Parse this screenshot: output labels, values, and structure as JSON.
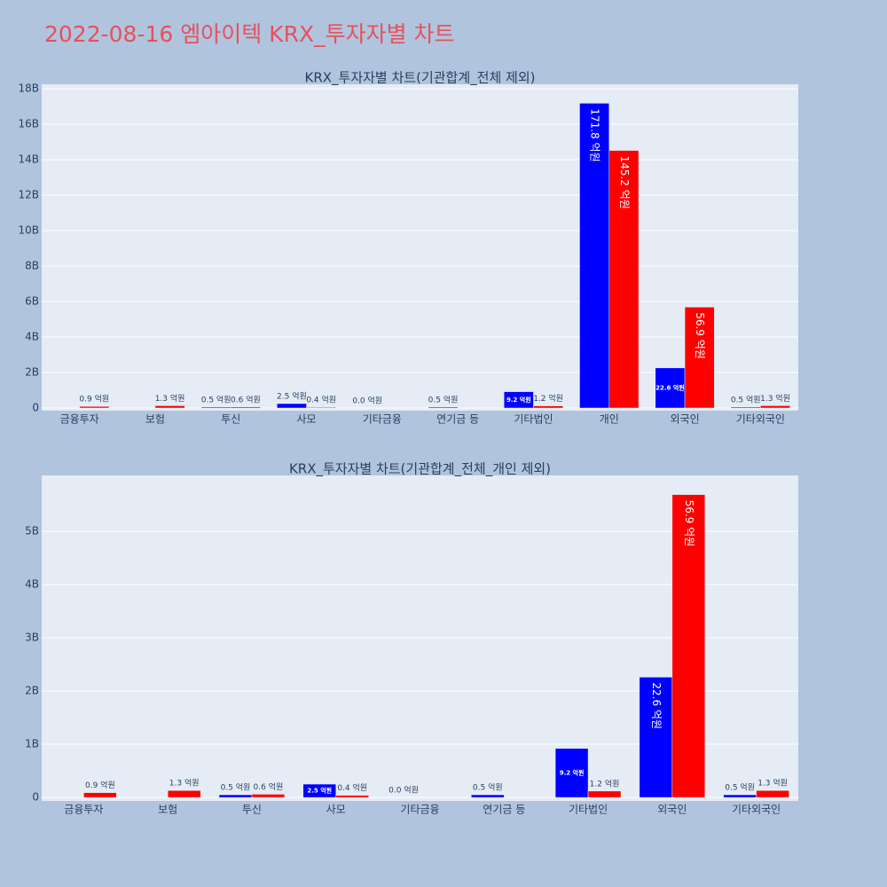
{
  "title": "2022-08-16 엠아이텍 KRX_투자자별 차트",
  "chart_data": [
    {
      "type": "bar",
      "title": "KRX_투자자별 차트(기관합계_전체 제외)",
      "categories": [
        "금융투자",
        "보험",
        "투신",
        "사모",
        "기타금융",
        "연기금 등",
        "기타법인",
        "개인",
        "외국인",
        "기타외국인"
      ],
      "series": [
        {
          "color": "#0000ff",
          "values": [
            null,
            null,
            50000000,
            250000000,
            0,
            50000000,
            920000000,
            17180000000,
            2260000000,
            50000000
          ],
          "value_labels": [
            null,
            null,
            "0.5 억원",
            "2.5 억원",
            "0.0 억원",
            "0.5 억원",
            "9.2 억원",
            "171.8 억원",
            "22.6 억원",
            "0.5 억원"
          ]
        },
        {
          "color": "#ff0000",
          "values": [
            90000000,
            130000000,
            60000000,
            40000000,
            null,
            null,
            120000000,
            14520000000,
            5690000000,
            130000000
          ],
          "value_labels": [
            "0.9 억원",
            "1.3 억원",
            "0.6 억원",
            "0.4 억원",
            null,
            null,
            "1.2 억원",
            "145.2 억원",
            "56.9 억원",
            "1.3 억원"
          ]
        }
      ],
      "ylim": [
        -150000000,
        18250000000
      ],
      "yticks": [
        0,
        {
          "value": 2000000000,
          "label": "2B"
        },
        {
          "value": 4000000000,
          "label": "4B"
        },
        {
          "value": 6000000000,
          "label": "6B"
        },
        {
          "value": 8000000000,
          "label": "8B"
        },
        {
          "value": 10000000000,
          "label": "10B"
        },
        {
          "value": 12000000000,
          "label": "12B"
        },
        {
          "value": 14000000000,
          "label": "14B"
        },
        {
          "value": 16000000000,
          "label": "16B"
        },
        {
          "value": 18000000000,
          "label": "18B"
        }
      ],
      "grid": true
    },
    {
      "type": "bar",
      "title": "KRX_투자자별 차트(기관합계_전체_개인 제외)",
      "categories": [
        "금융투자",
        "보험",
        "투신",
        "사모",
        "기타금융",
        "연기금 등",
        "기타법인",
        "외국인",
        "기타외국인"
      ],
      "series": [
        {
          "color": "#0000ff",
          "values": [
            null,
            null,
            50000000,
            250000000,
            0,
            50000000,
            920000000,
            2260000000,
            50000000
          ],
          "value_labels": [
            null,
            null,
            "0.5 억원",
            "2.5 억원",
            "0.0 억원",
            "0.5 억원",
            "9.2 억원",
            "22.6 억원",
            "0.5 억원"
          ]
        },
        {
          "color": "#ff0000",
          "values": [
            90000000,
            130000000,
            60000000,
            40000000,
            null,
            null,
            120000000,
            5690000000,
            130000000
          ],
          "value_labels": [
            "0.9 억원",
            "1.3 억원",
            "0.6 억원",
            "0.4 억원",
            null,
            null,
            "1.2 억원",
            "56.9 억원",
            "1.3 억원"
          ]
        }
      ],
      "ylim": [
        -66000000,
        6050000000
      ],
      "yticks": [
        0,
        {
          "value": 1000000000,
          "label": "1B"
        },
        {
          "value": 2000000000,
          "label": "2B"
        },
        {
          "value": 3000000000,
          "label": "3B"
        },
        {
          "value": 4000000000,
          "label": "4B"
        },
        {
          "value": 5000000000,
          "label": "5B"
        }
      ],
      "grid": true
    }
  ]
}
